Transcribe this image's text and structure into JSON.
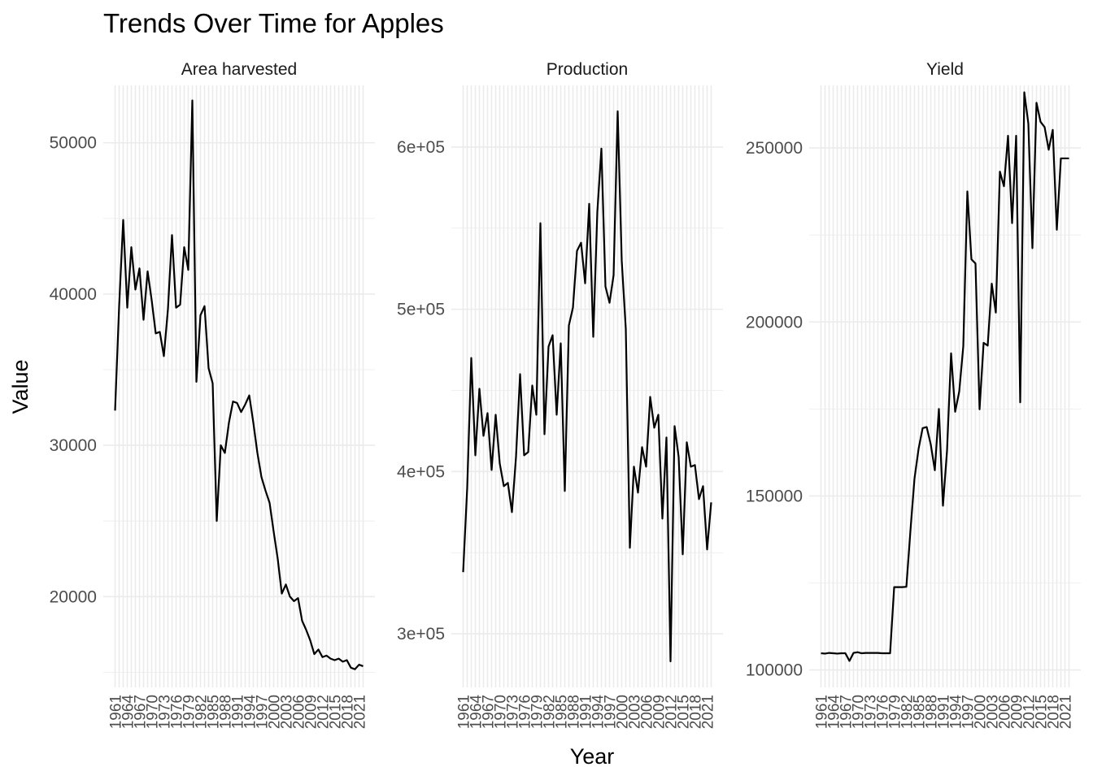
{
  "chart_data": {
    "type": "line",
    "title": "Trends Over Time for Apples",
    "xlabel": "Year",
    "ylabel": "Value",
    "x": [
      1961,
      1962,
      1963,
      1964,
      1965,
      1966,
      1967,
      1968,
      1969,
      1970,
      1971,
      1972,
      1973,
      1974,
      1975,
      1976,
      1977,
      1978,
      1979,
      1980,
      1981,
      1982,
      1983,
      1984,
      1985,
      1986,
      1987,
      1988,
      1989,
      1990,
      1991,
      1992,
      1993,
      1994,
      1995,
      1996,
      1997,
      1998,
      1999,
      2000,
      2001,
      2002,
      2003,
      2004,
      2005,
      2006,
      2007,
      2008,
      2009,
      2010,
      2011,
      2012,
      2013,
      2014,
      2015,
      2016,
      2017,
      2018,
      2019,
      2020,
      2021,
      2022
    ],
    "x_tick_labels": [
      "1961",
      "1964",
      "1967",
      "1970",
      "1973",
      "1976",
      "1979",
      "1982",
      "1985",
      "1988",
      "1991",
      "1994",
      "1997",
      "2000",
      "2003",
      "2006",
      "2009",
      "2012",
      "2015",
      "2018",
      "2021"
    ],
    "grid": true,
    "facets": [
      {
        "name": "Area harvested",
        "ylim": [
          14000,
          53800
        ],
        "y_ticks": [
          20000,
          30000,
          40000,
          50000
        ],
        "y_tick_labels": [
          "20000",
          "30000",
          "40000",
          "50000"
        ],
        "values": [
          32300,
          39200,
          44900,
          39100,
          43100,
          40300,
          41700,
          38300,
          41500,
          39600,
          37400,
          37500,
          35900,
          39000,
          43900,
          39100,
          39300,
          43100,
          41600,
          52800,
          34200,
          38600,
          39200,
          35100,
          34100,
          25000,
          30000,
          29500,
          31500,
          32900,
          32800,
          32200,
          32700,
          33300,
          31500,
          29500,
          27900,
          27000,
          26200,
          24300,
          22500,
          20200,
          20800,
          20000,
          19700,
          19900,
          18400,
          17800,
          17100,
          16200,
          16500,
          16000,
          16100,
          15900,
          15800,
          15900,
          15700,
          15800,
          15300,
          15200,
          15500,
          15400
        ]
      },
      {
        "name": "Production",
        "ylim": [
          267000,
          638000
        ],
        "y_ticks": [
          300000,
          400000,
          500000,
          600000
        ],
        "y_tick_labels": [
          "3e+05",
          "4e+05",
          "5e+05",
          "6e+05"
        ],
        "values": [
          338000,
          390000,
          470000,
          410000,
          451000,
          422000,
          436000,
          401000,
          435000,
          405000,
          391000,
          393000,
          375000,
          409000,
          460000,
          410000,
          412000,
          453000,
          435000,
          553000,
          423000,
          477000,
          484000,
          435000,
          479000,
          388000,
          490000,
          501000,
          536000,
          541000,
          516000,
          565000,
          483000,
          560000,
          599000,
          514000,
          504000,
          521000,
          622000,
          530000,
          488000,
          353000,
          403000,
          387000,
          415000,
          403000,
          446000,
          427000,
          435000,
          371000,
          421000,
          283000,
          428000,
          409000,
          349000,
          418000,
          403000,
          404000,
          383000,
          391000,
          352000,
          381000
        ]
      },
      {
        "name": "Yield",
        "ylim": [
          95000,
          268000
        ],
        "y_ticks": [
          100000,
          150000,
          200000,
          250000
        ],
        "y_tick_labels": [
          "100000",
          "150000",
          "200000",
          "250000"
        ],
        "values": [
          104800,
          104700,
          104900,
          104800,
          104700,
          104800,
          104800,
          102600,
          104900,
          105100,
          104800,
          104900,
          104900,
          104900,
          104900,
          104800,
          104800,
          104800,
          123800,
          123800,
          123800,
          123900,
          140000,
          155000,
          163500,
          169500,
          169800,
          164800,
          157400,
          175000,
          147200,
          163000,
          191000,
          174200,
          180000,
          193000,
          237500,
          218000,
          216800,
          174900,
          194000,
          193200,
          211000,
          202700,
          243200,
          239000,
          253500,
          228400,
          253500,
          176900,
          266000,
          257000,
          221200,
          263000,
          257500,
          256000,
          249500,
          255200,
          226500,
          247000,
          247000,
          247000
        ]
      }
    ]
  }
}
